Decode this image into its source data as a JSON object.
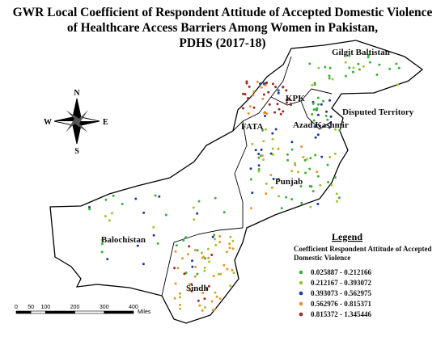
{
  "title": [
    "GWR Local Coefficient of Respondent Attitude of Accepted Domestic Violence",
    "of Healthcare Access Barriers Among Women in Pakistan,",
    "PDHS (2017-18)"
  ],
  "regions": [
    "Gilgit Baltistan",
    "KPK",
    "Disputed Territory",
    "FATA",
    "Azad Kashmir",
    "Punjab",
    "Balochistan",
    "Sindh"
  ],
  "compass": [
    "N",
    "S",
    "E",
    "W"
  ],
  "legend": {
    "heading": "Legend",
    "title": "Coefficient Respondent Attitude of Accepted Domestic Violence",
    "items": [
      {
        "label": "0.025887 - 0.212166",
        "color": "#3fae3a"
      },
      {
        "label": "0.212167 - 0.393072",
        "color": "#a4c234"
      },
      {
        "label": "0.393073 - 0.562975",
        "color": "#1f3a9a"
      },
      {
        "label": "0.562976 - 0.815371",
        "color": "#e3962c"
      },
      {
        "label": "0.815372 - 1.345446",
        "color": "#9e2b25"
      }
    ]
  },
  "scale": {
    "ticks": [
      0,
      50,
      100,
      200,
      300,
      400
    ],
    "unit": "Miles"
  }
}
